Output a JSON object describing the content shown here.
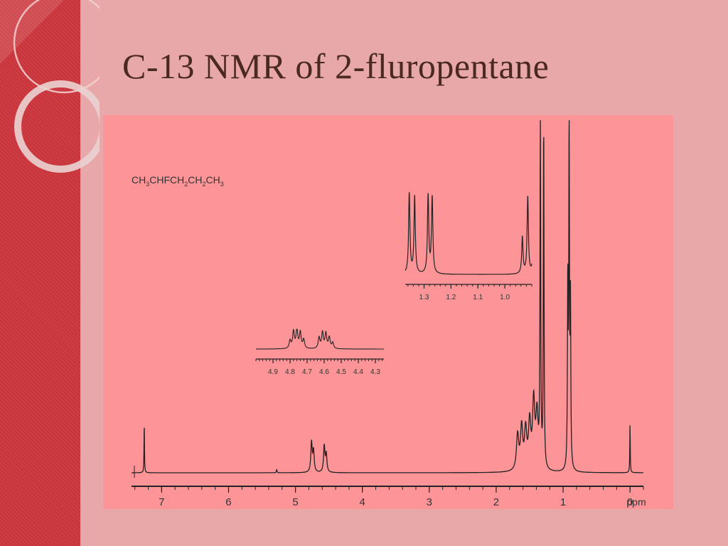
{
  "slide": {
    "title": "C-13 NMR of 2-fluropentane"
  },
  "colors": {
    "background": "#e8a7a8",
    "left_band": "#c7333a",
    "spectrum_background": "#fd9598",
    "trace": "#222222",
    "title": "#4a2a1e"
  },
  "chart_data": {
    "type": "line",
    "molecule_formula": "CH3CHFCH2CH2CH3",
    "formula_parts": [
      {
        "text": "CH",
        "sub": "3"
      },
      {
        "text": "CHFCH",
        "sub": "2"
      },
      {
        "text": "CH",
        "sub": "2"
      },
      {
        "text": "CH",
        "sub": "3"
      }
    ],
    "main": {
      "xlabel": "ppm",
      "xlim": [
        7.45,
        -0.2
      ],
      "ticks": [
        "7",
        "6",
        "5",
        "4",
        "3",
        "2",
        "1",
        "0"
      ],
      "tick_values": [
        7,
        6,
        5,
        4,
        3,
        2,
        1,
        0
      ],
      "peaks": [
        {
          "ppm": 7.26,
          "height": 0.14,
          "width": 0.004
        },
        {
          "ppm": 5.28,
          "height": 0.01,
          "width": 0.005
        },
        {
          "ppm": 4.76,
          "height": 0.085,
          "width": 0.012
        },
        {
          "ppm": 4.73,
          "height": 0.06,
          "width": 0.012
        },
        {
          "ppm": 4.57,
          "height": 0.075,
          "width": 0.012
        },
        {
          "ppm": 4.54,
          "height": 0.05,
          "width": 0.012
        },
        {
          "ppm": 1.68,
          "height": 0.1,
          "width": 0.02
        },
        {
          "ppm": 1.62,
          "height": 0.12,
          "width": 0.02
        },
        {
          "ppm": 1.56,
          "height": 0.11,
          "width": 0.02
        },
        {
          "ppm": 1.5,
          "height": 0.13,
          "width": 0.02
        },
        {
          "ppm": 1.44,
          "height": 0.19,
          "width": 0.02
        },
        {
          "ppm": 1.39,
          "height": 0.15,
          "width": 0.02
        },
        {
          "ppm": 1.34,
          "height": 1.0,
          "width": 0.006
        },
        {
          "ppm": 1.29,
          "height": 0.98,
          "width": 0.006
        },
        {
          "ppm": 0.93,
          "height": 0.52,
          "width": 0.006
        },
        {
          "ppm": 0.91,
          "height": 1.0,
          "width": 0.006
        },
        {
          "ppm": 0.89,
          "height": 0.45,
          "width": 0.006
        },
        {
          "ppm": 0.0,
          "height": 0.14,
          "width": 0.004
        }
      ]
    },
    "inset_high": {
      "xlim": [
        1.37,
        0.9
      ],
      "ticks": [
        "1.3",
        "1.2",
        "1.1",
        "1.0"
      ],
      "tick_values": [
        1.3,
        1.2,
        1.1,
        1.0
      ],
      "peaks": [
        {
          "ppm": 1.355,
          "height": 0.96,
          "width": 0.003
        },
        {
          "ppm": 1.335,
          "height": 0.92,
          "width": 0.003
        },
        {
          "ppm": 1.285,
          "height": 0.93,
          "width": 0.003
        },
        {
          "ppm": 1.27,
          "height": 0.91,
          "width": 0.003
        },
        {
          "ppm": 0.935,
          "height": 0.44,
          "width": 0.003
        },
        {
          "ppm": 0.915,
          "height": 0.92,
          "width": 0.003
        },
        {
          "ppm": 0.895,
          "height": 0.34,
          "width": 0.003
        }
      ]
    },
    "inset_low": {
      "xlim": [
        5.0,
        4.25
      ],
      "ticks": [
        "4.9",
        "4.8",
        "4.7",
        "4.6",
        "4.5",
        "4.4",
        "4.3"
      ],
      "tick_values": [
        4.9,
        4.8,
        4.7,
        4.6,
        4.5,
        4.4,
        4.3
      ],
      "peaks": [
        {
          "ppm": 4.8,
          "height": 0.4,
          "width": 0.006
        },
        {
          "ppm": 4.78,
          "height": 0.85,
          "width": 0.006
        },
        {
          "ppm": 4.76,
          "height": 0.95,
          "width": 0.006
        },
        {
          "ppm": 4.74,
          "height": 0.8,
          "width": 0.006
        },
        {
          "ppm": 4.72,
          "height": 0.45,
          "width": 0.006
        },
        {
          "ppm": 4.63,
          "height": 0.55,
          "width": 0.006
        },
        {
          "ppm": 4.61,
          "height": 0.8,
          "width": 0.006
        },
        {
          "ppm": 4.59,
          "height": 0.75,
          "width": 0.006
        },
        {
          "ppm": 4.57,
          "height": 0.55,
          "width": 0.006
        },
        {
          "ppm": 4.55,
          "height": 0.3,
          "width": 0.006
        }
      ]
    }
  }
}
